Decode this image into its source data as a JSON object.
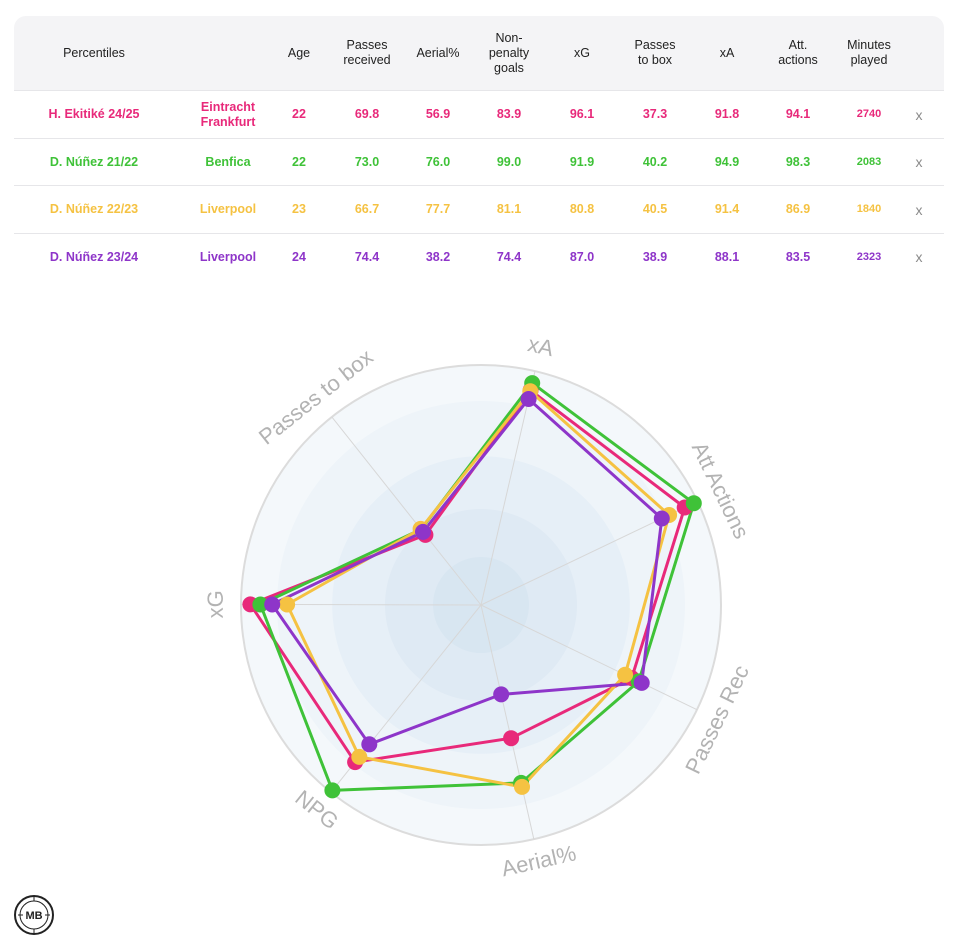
{
  "table": {
    "headers": {
      "percentiles": "Percentiles",
      "age": "Age",
      "passes_received": "Passes\nreceived",
      "aerial": "Aerial%",
      "npg": "Non-\npenalty\ngoals",
      "xg": "xG",
      "passes_box": "Passes\nto box",
      "xa": "xA",
      "att": "Att.\nactions",
      "minutes": "Minutes\nplayed"
    },
    "remove_label": "x",
    "rows": [
      {
        "player": "H. Ekitiké 24/25",
        "team": "Eintracht\nFrankfurt",
        "age": "22",
        "passes_received": "69.8",
        "aerial": "56.9",
        "npg": "83.9",
        "xg": "96.1",
        "passes_box": "37.3",
        "xa": "91.8",
        "att": "94.1",
        "minutes": "2740",
        "color": "#e8297a"
      },
      {
        "player": "D. Núñez 21/22",
        "team": "Benfica",
        "age": "22",
        "passes_received": "73.0",
        "aerial": "76.0",
        "npg": "99.0",
        "xg": "91.9",
        "passes_box": "40.2",
        "xa": "94.9",
        "att": "98.3",
        "minutes": "2083",
        "color": "#3fc238"
      },
      {
        "player": "D. Núñez 22/23",
        "team": "Liverpool",
        "age": "23",
        "passes_received": "66.7",
        "aerial": "77.7",
        "npg": "81.1",
        "xg": "80.8",
        "passes_box": "40.5",
        "xa": "91.4",
        "att": "86.9",
        "minutes": "1840",
        "color": "#f5c242"
      },
      {
        "player": "D. Núñez 23/24",
        "team": "Liverpool",
        "age": "24",
        "passes_received": "74.4",
        "aerial": "38.2",
        "npg": "74.4",
        "xg": "87.0",
        "passes_box": "38.9",
        "xa": "88.1",
        "att": "83.5",
        "minutes": "2323",
        "color": "#8e35c9"
      }
    ]
  },
  "chart_data": {
    "type": "radar",
    "axes": [
      "xA",
      "Att Actions",
      "Passes Rec",
      "Aerial%",
      "NPG",
      "xG",
      "Passes to box"
    ],
    "range": [
      0,
      100
    ],
    "grid": true,
    "series": [
      {
        "name": "H. Ekitiké 24/25",
        "color": "#e8297a",
        "values": [
          91.8,
          94.1,
          69.8,
          56.9,
          83.9,
          96.1,
          37.3
        ]
      },
      {
        "name": "D. Núñez 21/22",
        "color": "#3fc238",
        "values": [
          94.9,
          98.3,
          73.0,
          76.0,
          99.0,
          91.9,
          40.2
        ]
      },
      {
        "name": "D. Núñez 22/23",
        "color": "#f5c242",
        "values": [
          91.4,
          86.9,
          66.7,
          77.7,
          81.1,
          80.8,
          40.5
        ]
      },
      {
        "name": "D. Núñez 23/24",
        "color": "#8e35c9",
        "values": [
          88.1,
          83.5,
          74.4,
          38.2,
          74.4,
          87.0,
          38.9
        ]
      }
    ]
  },
  "logo": {
    "text": "MB"
  }
}
